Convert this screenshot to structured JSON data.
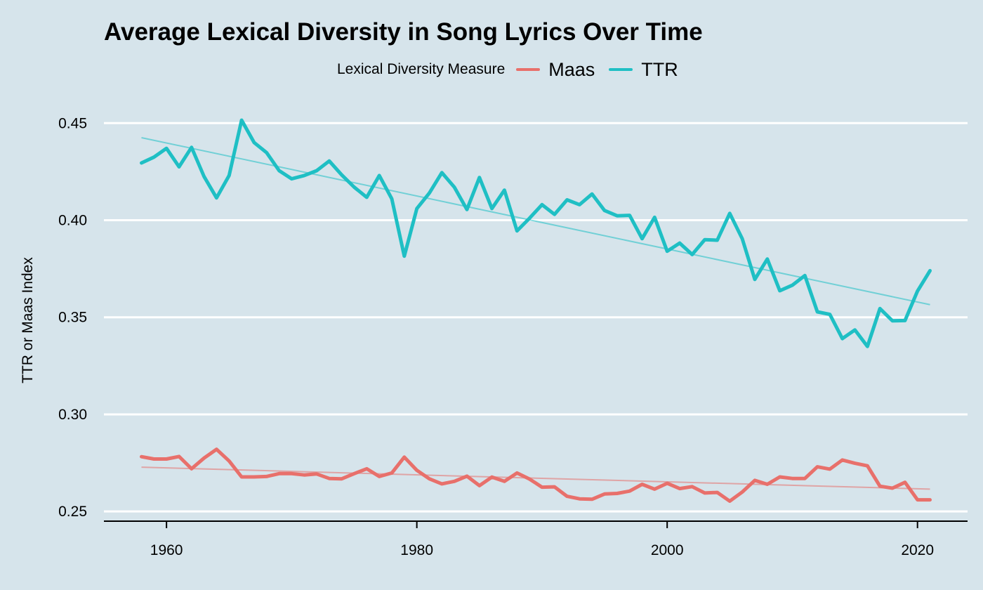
{
  "chart_data": {
    "type": "line",
    "title": "Average Lexical Diversity in Song Lyrics Over Time",
    "xlabel": "",
    "ylabel": "TTR or Maas Index",
    "legend": {
      "title": "Lexical Diversity Measure",
      "position": "top",
      "entries": [
        "Maas",
        "TTR"
      ]
    },
    "xlim": [
      1955,
      2024
    ],
    "ylim": [
      0.245,
      0.47
    ],
    "xticks": [
      1960,
      1980,
      2000,
      2020
    ],
    "yticks": [
      0.25,
      0.3,
      0.35,
      0.4,
      0.45
    ],
    "xtick_labels": [
      "1960",
      "1980",
      "2000",
      "2020"
    ],
    "ytick_labels": [
      "0.25",
      "0.30",
      "0.35",
      "0.40",
      "0.45"
    ],
    "grid": "horizontal major lines",
    "x": [
      1958,
      1959,
      1960,
      1961,
      1962,
      1963,
      1964,
      1965,
      1966,
      1967,
      1968,
      1969,
      1970,
      1971,
      1972,
      1973,
      1974,
      1975,
      1976,
      1977,
      1978,
      1979,
      1980,
      1981,
      1982,
      1983,
      1984,
      1985,
      1986,
      1987,
      1988,
      1989,
      1990,
      1991,
      1992,
      1993,
      1994,
      1995,
      1996,
      1997,
      1998,
      1999,
      2000,
      2001,
      2002,
      2003,
      2004,
      2005,
      2006,
      2007,
      2008,
      2009,
      2010,
      2011,
      2012,
      2013,
      2014,
      2015,
      2016,
      2017,
      2018,
      2019,
      2020,
      2021
    ],
    "series": [
      {
        "name": "Maas",
        "color": "#e8706b",
        "values": [
          0.2782,
          0.277,
          0.277,
          0.2783,
          0.272,
          0.2775,
          0.282,
          0.276,
          0.2678,
          0.2678,
          0.268,
          0.2695,
          0.2695,
          0.2688,
          0.2693,
          0.267,
          0.2668,
          0.2695,
          0.272,
          0.268,
          0.2698,
          0.278,
          0.2712,
          0.2668,
          0.2642,
          0.2655,
          0.2682,
          0.2633,
          0.2677,
          0.2655,
          0.2698,
          0.2667,
          0.2625,
          0.2627,
          0.2578,
          0.2565,
          0.2563,
          0.259,
          0.2593,
          0.2605,
          0.264,
          0.2615,
          0.2645,
          0.2618,
          0.2628,
          0.2595,
          0.2598,
          0.2553,
          0.26,
          0.266,
          0.264,
          0.2678,
          0.267,
          0.267,
          0.273,
          0.2718,
          0.2765,
          0.2748,
          0.2735,
          0.263,
          0.262,
          0.265,
          0.256,
          0.256
        ],
        "trend": [
          0.2728,
          0.2615
        ]
      },
      {
        "name": "TTR",
        "color": "#1fbfc4",
        "values": [
          0.4295,
          0.4325,
          0.437,
          0.4275,
          0.4375,
          0.4225,
          0.4115,
          0.423,
          0.4515,
          0.44,
          0.4348,
          0.4255,
          0.4213,
          0.423,
          0.4255,
          0.4305,
          0.4233,
          0.417,
          0.4118,
          0.423,
          0.411,
          0.3815,
          0.406,
          0.414,
          0.4245,
          0.417,
          0.4055,
          0.422,
          0.406,
          0.4155,
          0.3945,
          0.401,
          0.408,
          0.403,
          0.4105,
          0.408,
          0.4135,
          0.405,
          0.4023,
          0.4025,
          0.3905,
          0.4015,
          0.384,
          0.3882,
          0.3823,
          0.39,
          0.3897,
          0.4035,
          0.3905,
          0.3695,
          0.38,
          0.3637,
          0.3665,
          0.3715,
          0.3528,
          0.3515,
          0.339,
          0.3435,
          0.335,
          0.3545,
          0.3482,
          0.3483,
          0.3635,
          0.374
        ],
        "trend": [
          0.4425,
          0.3565
        ]
      }
    ]
  }
}
